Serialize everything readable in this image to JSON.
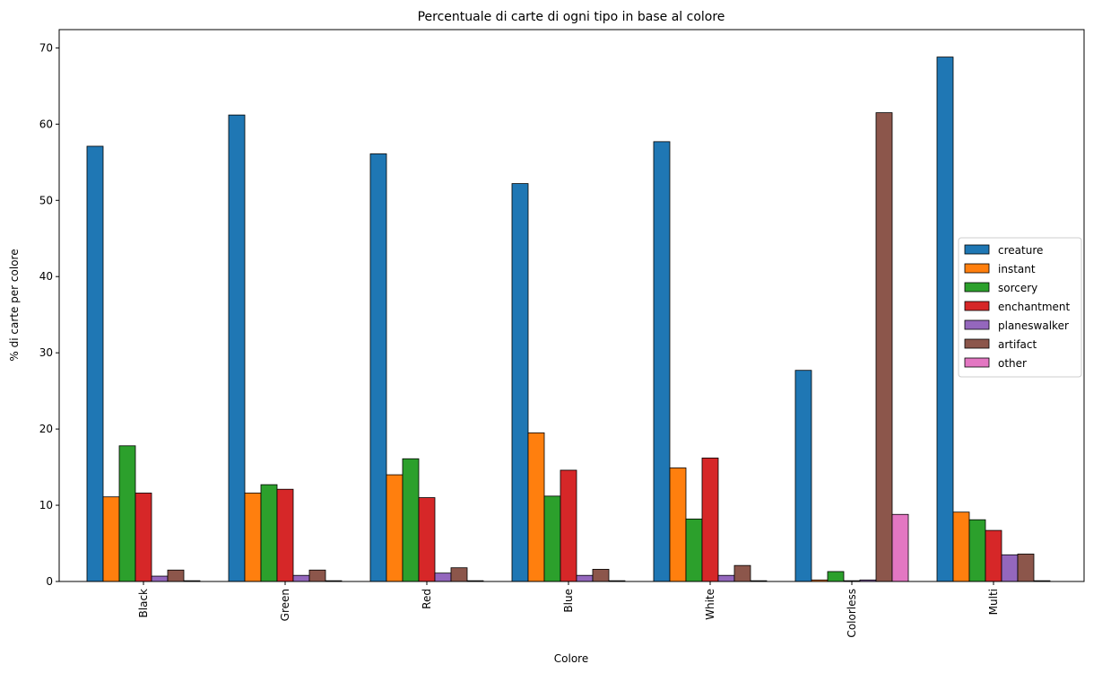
{
  "chart_data": {
    "type": "bar",
    "title": "Percentuale di carte di ogni tipo in base al colore",
    "xlabel": "Colore",
    "ylabel": "% di carte per colore",
    "ylim": [
      0,
      72.4
    ],
    "yticks": [
      0,
      10,
      20,
      30,
      40,
      50,
      60,
      70
    ],
    "grid": false,
    "legend_position": "right",
    "categories": [
      "Black",
      "Green",
      "Red",
      "Blue",
      "White",
      "Colorless",
      "Multi"
    ],
    "series": [
      {
        "name": "creature",
        "color": "#1f77b4",
        "values": [
          57.1,
          61.2,
          56.1,
          52.2,
          57.7,
          27.7,
          68.8
        ]
      },
      {
        "name": "instant",
        "color": "#ff7f0e",
        "values": [
          11.1,
          11.6,
          14.0,
          19.5,
          14.9,
          0.2,
          9.1
        ]
      },
      {
        "name": "sorcery",
        "color": "#2ca02c",
        "values": [
          17.8,
          12.7,
          16.1,
          11.2,
          8.2,
          1.3,
          8.1
        ]
      },
      {
        "name": "enchantment",
        "color": "#d62728",
        "values": [
          11.6,
          12.1,
          11.0,
          14.6,
          16.2,
          0.1,
          6.7
        ]
      },
      {
        "name": "planeswalker",
        "color": "#9467bd",
        "values": [
          0.7,
          0.8,
          1.1,
          0.8,
          0.8,
          0.2,
          3.5
        ]
      },
      {
        "name": "artifact",
        "color": "#8c564b",
        "values": [
          1.5,
          1.5,
          1.8,
          1.6,
          2.1,
          61.5,
          3.6
        ]
      },
      {
        "name": "other",
        "color": "#e377c2",
        "values": [
          0.1,
          0.1,
          0.1,
          0.1,
          0.1,
          8.8,
          0.1
        ]
      }
    ]
  }
}
